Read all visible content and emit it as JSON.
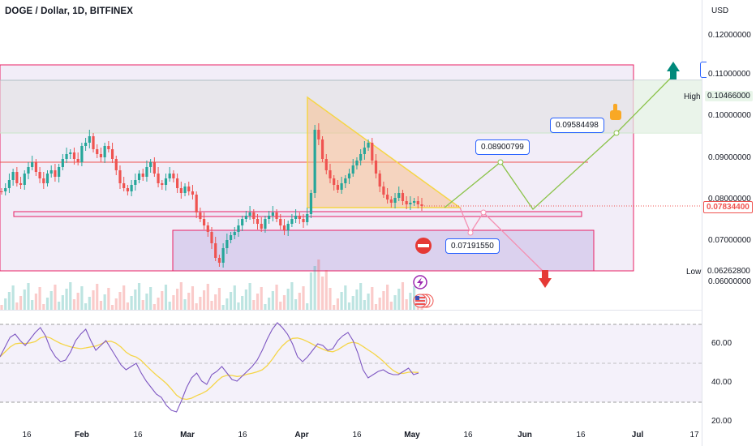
{
  "title": "DOGE / Dollar, 1D, BITFINEX",
  "currency": "USD",
  "price_axis": [
    "0.12000000",
    "0.11000000",
    "0.10000000",
    "0.09000000",
    "0.08000000",
    "0.07000000",
    "0.06000000"
  ],
  "current_price": "0.07834400",
  "high": {
    "label": "High",
    "value": "0.10466000"
  },
  "low": {
    "label": "Low",
    "value": "0.06262800"
  },
  "rsi_axis": [
    "60.00",
    "40.00",
    "20.00"
  ],
  "time_axis": [
    {
      "label": "16",
      "bold": false
    },
    {
      "label": "Feb",
      "bold": true
    },
    {
      "label": "16",
      "bold": false
    },
    {
      "label": "Mar",
      "bold": true
    },
    {
      "label": "16",
      "bold": false
    },
    {
      "label": "Apr",
      "bold": true
    },
    {
      "label": "16",
      "bold": false
    },
    {
      "label": "May",
      "bold": true
    },
    {
      "label": "16",
      "bold": false
    },
    {
      "label": "Jun",
      "bold": true
    },
    {
      "label": "16",
      "bold": false
    },
    {
      "label": "Jul",
      "bold": true
    },
    {
      "label": "17",
      "bold": false
    }
  ],
  "callouts": {
    "target_high": "0.09584498",
    "target_mid": "0.08900799",
    "target_low": "0.07191550"
  },
  "colors": {
    "up": "#26a69a",
    "down": "#ef5350",
    "zone_border": "#e91e63",
    "zone_fill": "#ede7f6",
    "triangle": "#f7c08f",
    "rsi": "#7e57c2",
    "rsi_ma": "#f5d547",
    "projection_up": "#8bc34a",
    "projection_down": "#f48fb1"
  },
  "icons": [
    "thumbs-up-icon",
    "no-entry-icon",
    "lightning-icon",
    "us-flag-icon",
    "arrow-up-icon",
    "arrow-down-icon"
  ]
}
